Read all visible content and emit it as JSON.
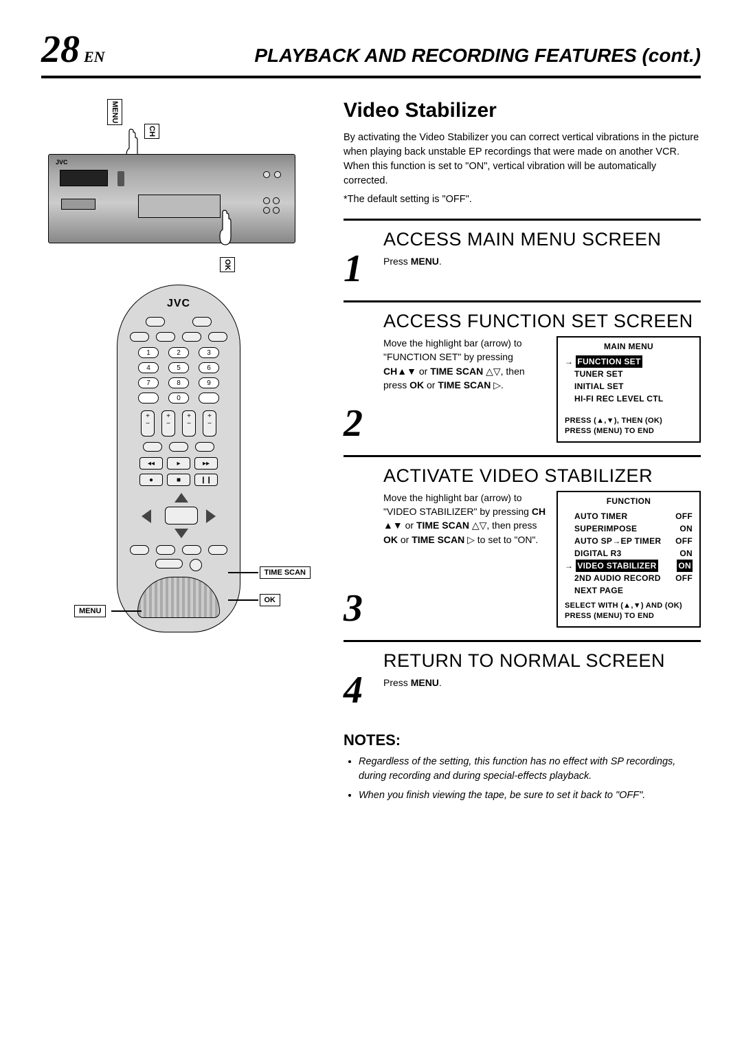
{
  "page": {
    "number": "28",
    "lang": "EN"
  },
  "header_title": "PLAYBACK AND RECORDING FEATURES (cont.)",
  "section_title": "Video Stabilizer",
  "intro": "By activating the Video Stabilizer you can correct vertical vibrations in the picture when playing back unstable EP recordings that were made on another VCR. When this function is set to \"ON\", vertical vibration will be automatically corrected.",
  "default": "*The default setting is \"OFF\".",
  "brand": "JVC",
  "vcr_labels": {
    "menu": "MENU",
    "ch": "CH",
    "ok": "OK"
  },
  "remote": {
    "numbers": [
      "1",
      "2",
      "3",
      "4",
      "5",
      "6",
      "7",
      "8",
      "9",
      "",
      "0",
      ""
    ],
    "callouts": {
      "time_scan": "TIME SCAN",
      "ok": "OK",
      "menu": "MENU"
    }
  },
  "steps": [
    {
      "num": "1",
      "title": "ACCESS MAIN MENU SCREEN",
      "text_html": "Press <b>MENU</b>."
    },
    {
      "num": "2",
      "title": "ACCESS FUNCTION SET SCREEN",
      "text_html": "Move the highlight bar (arrow) to \"FUNCTION SET\" by pressing <b>CH</b>▲▼ or <b>TIME SCAN</b> △▽, then press <b>OK</b> or <b>TIME SCAN</b> ▷.",
      "screen": {
        "title": "MAIN MENU",
        "lines": [
          {
            "arrow": true,
            "label_hl": "FUNCTION SET"
          },
          {
            "label": "TUNER SET"
          },
          {
            "label": "INITIAL SET"
          },
          {
            "label": "HI-FI REC LEVEL CTL"
          }
        ],
        "footer": [
          "PRESS (▲,▼), THEN (OK)",
          "PRESS (MENU) TO END"
        ]
      }
    },
    {
      "num": "3",
      "title": "ACTIVATE VIDEO STABILIZER",
      "text_html": "Move the highlight bar (arrow) to \"VIDEO STABILIZER\" by pressing <b>CH</b> ▲▼ or <b>TIME SCAN</b> △▽, then press <b>OK</b> or <b>TIME SCAN</b> ▷ to set to \"ON\".",
      "screen": {
        "title": "FUNCTION",
        "pairs": [
          {
            "label": "AUTO TIMER",
            "val": "OFF"
          },
          {
            "label": "SUPERIMPOSE",
            "val": "ON"
          },
          {
            "label": "AUTO SP→EP TIMER",
            "val": "OFF"
          },
          {
            "label": "DIGITAL R3",
            "val": "ON"
          },
          {
            "label_hl": "VIDEO STABILIZER",
            "val_hl": "ON",
            "arrow": true
          },
          {
            "label": "2ND AUDIO RECORD",
            "val": "OFF"
          },
          {
            "label": "NEXT PAGE"
          }
        ],
        "footer": [
          "SELECT WITH (▲,▼) AND (OK)",
          "PRESS (MENU) TO END"
        ]
      }
    },
    {
      "num": "4",
      "title": "RETURN TO NORMAL SCREEN",
      "text_html": "Press <b>MENU</b>."
    }
  ],
  "notes_title": "NOTES:",
  "notes": [
    "Regardless of the setting, this function has no effect with SP recordings, during recording and during special-effects playback.",
    "When you finish viewing the tape, be sure to set it back to \"OFF\"."
  ]
}
